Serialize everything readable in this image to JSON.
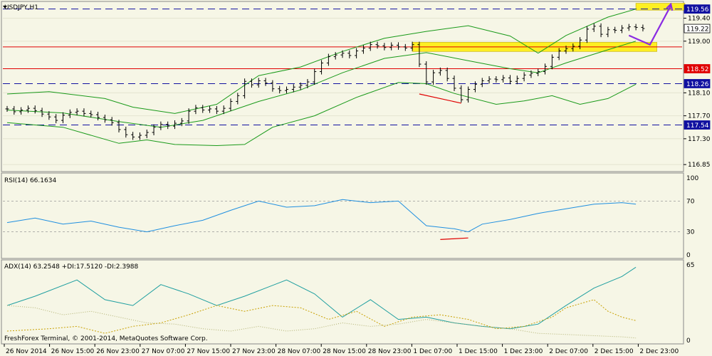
{
  "colors": {
    "background": "#f6f6e6",
    "price_bar": "#000000",
    "bollinger": "#1a9a1a",
    "horizontal_line_red": "#e00000",
    "horizontal_line_dashed": "#1010a0",
    "zone_highlight": "#ffee00",
    "forecast_arrow": "#8a2be2",
    "divergence_line": "#e00000",
    "rsi_line": "#1f8fe0",
    "adx_line": "#1f9fa0",
    "di_plus": "#c8a000",
    "di_minus": "#b0b070"
  },
  "chart_data": [
    {
      "type": "line",
      "panel": "price",
      "title": "USDJPY,H1",
      "ylim": [
        116.74,
        119.68
      ],
      "price_ticks": [
        "119.40",
        "119.00",
        "118.10",
        "117.70",
        "117.30",
        "116.85"
      ],
      "price_tick_values": [
        119.4,
        119.0,
        118.1,
        117.7,
        117.3,
        116.85
      ],
      "x_labels": [
        "26 Nov 2014",
        "26 Nov 15:00",
        "26 Nov 23:00",
        "27 Nov 07:00",
        "27 Nov 15:00",
        "27 Nov 23:00",
        "28 Nov 07:00",
        "28 Nov 15:00",
        "28 Nov 23:00",
        "1 Dec 07:00",
        "1 Dec 15:00",
        "1 Dec 23:00",
        "2 Dec 07:00",
        "2 Dec 15:00",
        "2 Dec 23:00"
      ],
      "closes": [
        117.82,
        117.77,
        117.8,
        117.83,
        117.79,
        117.73,
        117.68,
        117.62,
        117.71,
        117.76,
        117.78,
        117.74,
        117.72,
        117.67,
        117.63,
        117.58,
        117.46,
        117.37,
        117.33,
        117.36,
        117.41,
        117.5,
        117.55,
        117.52,
        117.57,
        117.61,
        117.78,
        117.84,
        117.8,
        117.82,
        117.78,
        117.83,
        117.95,
        118.05,
        118.3,
        118.24,
        118.31,
        118.27,
        118.17,
        118.14,
        118.16,
        118.2,
        118.23,
        118.29,
        118.47,
        118.62,
        118.73,
        118.76,
        118.79,
        118.75,
        118.83,
        118.88,
        118.94,
        118.92,
        118.89,
        118.93,
        118.9,
        118.88,
        118.94,
        118.6,
        118.29,
        118.45,
        118.49,
        118.35,
        118.18,
        117.98,
        118.16,
        118.25,
        118.31,
        118.34,
        118.33,
        118.36,
        118.3,
        118.35,
        118.41,
        118.44,
        118.47,
        118.56,
        118.72,
        118.83,
        118.87,
        118.91,
        119.02,
        119.21,
        119.26,
        119.12,
        119.2,
        119.19,
        119.23,
        119.25,
        119.24,
        119.22
      ],
      "series": [
        {
          "name": "",
          "role": "bollinger-upper",
          "values": [
            [
              0,
              118.08
            ],
            [
              6,
              118.12
            ],
            [
              14,
              118.0
            ],
            [
              18,
              117.85
            ],
            [
              24,
              117.74
            ],
            [
              30,
              117.9
            ],
            [
              36,
              118.4
            ],
            [
              42,
              118.55
            ],
            [
              48,
              118.82
            ],
            [
              54,
              119.05
            ],
            [
              60,
              119.17
            ],
            [
              66,
              119.27
            ],
            [
              72,
              119.09
            ],
            [
              76,
              118.79
            ],
            [
              80,
              119.1
            ],
            [
              86,
              119.42
            ],
            [
              90,
              119.56
            ]
          ]
        },
        {
          "name": "",
          "role": "bollinger-middle",
          "values": [
            [
              0,
              117.8
            ],
            [
              8,
              117.75
            ],
            [
              16,
              117.6
            ],
            [
              22,
              117.5
            ],
            [
              28,
              117.62
            ],
            [
              36,
              117.95
            ],
            [
              42,
              118.15
            ],
            [
              48,
              118.45
            ],
            [
              54,
              118.7
            ],
            [
              60,
              118.8
            ],
            [
              66,
              118.66
            ],
            [
              72,
              118.52
            ],
            [
              76,
              118.45
            ],
            [
              80,
              118.62
            ],
            [
              86,
              118.85
            ],
            [
              90,
              119.0
            ]
          ]
        },
        {
          "name": "",
          "role": "bollinger-lower",
          "values": [
            [
              0,
              117.58
            ],
            [
              8,
              117.5
            ],
            [
              16,
              117.22
            ],
            [
              20,
              117.28
            ],
            [
              24,
              117.2
            ],
            [
              30,
              117.18
            ],
            [
              34,
              117.2
            ],
            [
              38,
              117.5
            ],
            [
              44,
              117.7
            ],
            [
              50,
              118.02
            ],
            [
              56,
              118.28
            ],
            [
              60,
              118.26
            ],
            [
              64,
              118.09
            ],
            [
              70,
              117.9
            ],
            [
              74,
              117.96
            ],
            [
              78,
              118.05
            ],
            [
              82,
              117.9
            ],
            [
              86,
              118.0
            ],
            [
              90,
              118.25
            ]
          ]
        },
        {
          "name": "",
          "role": "divergence",
          "values": [
            [
              59,
              118.08
            ],
            [
              65,
              117.92
            ]
          ]
        },
        {
          "name": "",
          "role": "forecast",
          "values": [
            [
              89,
              119.1
            ],
            [
              92,
              118.94
            ],
            [
              95,
              119.62
            ]
          ]
        }
      ],
      "levels": [
        {
          "value": 119.56,
          "label": "119.56",
          "style": "dashed"
        },
        {
          "value": 119.22,
          "label": "119.22",
          "style": "current"
        },
        {
          "value": 118.9,
          "label": "",
          "style": "solid-red"
        },
        {
          "value": 118.52,
          "label": "118.52",
          "style": "solid-red"
        },
        {
          "value": 118.26,
          "label": "118.26",
          "style": "dashed"
        },
        {
          "value": 117.54,
          "label": "117.54",
          "style": "dashed"
        }
      ],
      "zones": [
        {
          "from_x": 58,
          "to_x": 93,
          "low": 118.82,
          "high": 118.98
        },
        {
          "from_x": 90,
          "to_x": 97,
          "low": 119.54,
          "high": 119.66
        }
      ],
      "watermark": "FreshForex Terminal, © 2001-2014, MetaQuotes Software Corp."
    },
    {
      "type": "line",
      "panel": "rsi",
      "label": "RSI(14) 66.1634",
      "ylim": [
        0,
        100
      ],
      "levels": [
        {
          "value": 70,
          "label": "70"
        },
        {
          "value": 30,
          "label": "30"
        }
      ],
      "ticks": [
        "100",
        "70",
        "30",
        "0"
      ],
      "tick_values": [
        100,
        70,
        30,
        0
      ],
      "series": [
        {
          "name": "RSI",
          "values": [
            [
              0,
              42
            ],
            [
              4,
              48
            ],
            [
              8,
              40
            ],
            [
              12,
              44
            ],
            [
              16,
              36
            ],
            [
              20,
              30
            ],
            [
              24,
              38
            ],
            [
              28,
              45
            ],
            [
              32,
              58
            ],
            [
              36,
              70
            ],
            [
              40,
              62
            ],
            [
              44,
              64
            ],
            [
              48,
              72
            ],
            [
              52,
              68
            ],
            [
              56,
              70
            ],
            [
              60,
              38
            ],
            [
              64,
              34
            ],
            [
              66,
              30
            ],
            [
              68,
              40
            ],
            [
              72,
              46
            ],
            [
              76,
              54
            ],
            [
              80,
              60
            ],
            [
              84,
              66
            ],
            [
              88,
              68
            ],
            [
              90,
              66
            ]
          ]
        },
        {
          "name": "",
          "role": "divergence",
          "values": [
            [
              62,
              20
            ],
            [
              66,
              22
            ]
          ]
        }
      ]
    },
    {
      "type": "line",
      "panel": "adx",
      "label": "ADX(14) 63.2548 +DI:17.5120 -DI:2.3988",
      "ylim": [
        0,
        65
      ],
      "ticks": [
        "65",
        "0"
      ],
      "tick_values": [
        65,
        0
      ],
      "series": [
        {
          "name": "ADX",
          "values": [
            [
              0,
              30
            ],
            [
              4,
              38
            ],
            [
              10,
              52
            ],
            [
              14,
              35
            ],
            [
              18,
              30
            ],
            [
              22,
              48
            ],
            [
              26,
              40
            ],
            [
              30,
              30
            ],
            [
              34,
              38
            ],
            [
              40,
              52
            ],
            [
              44,
              40
            ],
            [
              48,
              20
            ],
            [
              52,
              35
            ],
            [
              56,
              18
            ],
            [
              60,
              20
            ],
            [
              64,
              15
            ],
            [
              68,
              12
            ],
            [
              72,
              10
            ],
            [
              76,
              14
            ],
            [
              80,
              30
            ],
            [
              84,
              45
            ],
            [
              88,
              55
            ],
            [
              90,
              63
            ]
          ]
        },
        {
          "name": "+DI",
          "values": [
            [
              0,
              8
            ],
            [
              6,
              10
            ],
            [
              10,
              12
            ],
            [
              14,
              6
            ],
            [
              18,
              12
            ],
            [
              22,
              15
            ],
            [
              26,
              22
            ],
            [
              30,
              30
            ],
            [
              34,
              25
            ],
            [
              38,
              30
            ],
            [
              42,
              28
            ],
            [
              46,
              18
            ],
            [
              50,
              25
            ],
            [
              54,
              12
            ],
            [
              58,
              20
            ],
            [
              62,
              22
            ],
            [
              66,
              18
            ],
            [
              70,
              10
            ],
            [
              74,
              12
            ],
            [
              78,
              20
            ],
            [
              80,
              28
            ],
            [
              84,
              35
            ],
            [
              86,
              25
            ],
            [
              88,
              20
            ],
            [
              90,
              17
            ]
          ]
        },
        {
          "name": "-DI",
          "values": [
            [
              0,
              30
            ],
            [
              4,
              28
            ],
            [
              8,
              22
            ],
            [
              12,
              25
            ],
            [
              16,
              20
            ],
            [
              20,
              15
            ],
            [
              24,
              14
            ],
            [
              28,
              10
            ],
            [
              32,
              8
            ],
            [
              36,
              12
            ],
            [
              40,
              8
            ],
            [
              44,
              10
            ],
            [
              48,
              15
            ],
            [
              52,
              12
            ],
            [
              56,
              14
            ],
            [
              60,
              18
            ],
            [
              64,
              15
            ],
            [
              68,
              12
            ],
            [
              72,
              10
            ],
            [
              76,
              6
            ],
            [
              80,
              5
            ],
            [
              84,
              4
            ],
            [
              88,
              3
            ],
            [
              90,
              2
            ]
          ]
        }
      ]
    }
  ]
}
